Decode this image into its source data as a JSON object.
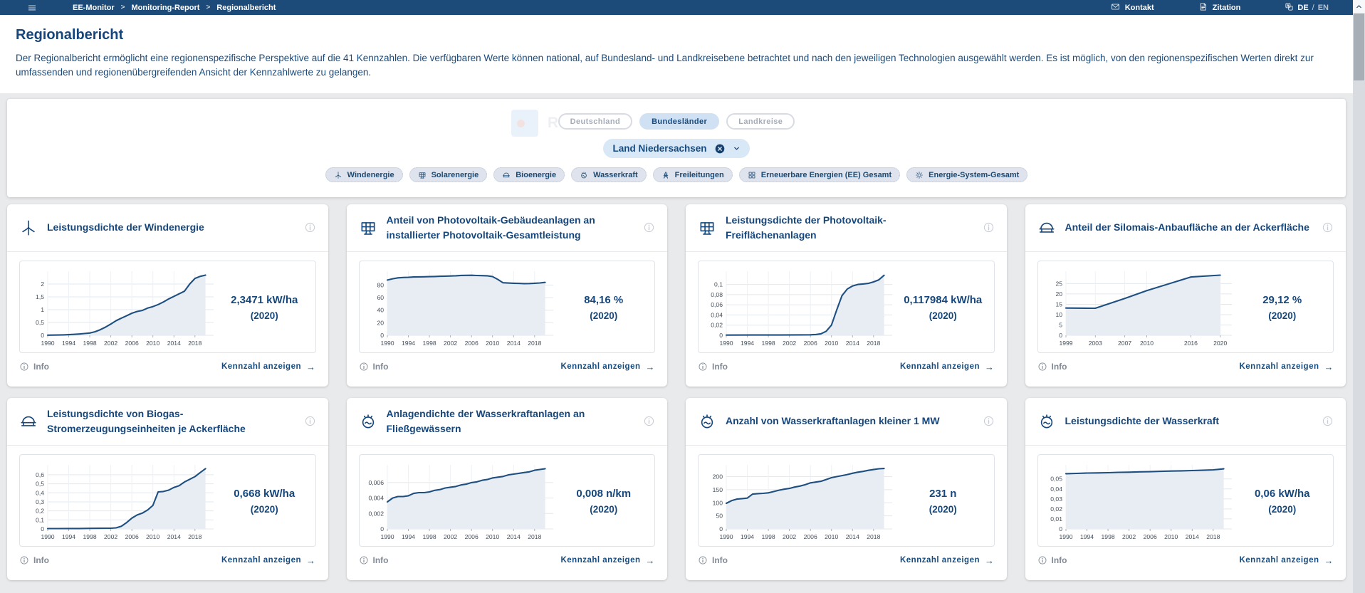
{
  "topbar": {
    "menu_icon": "hamburger-icon",
    "breadcrumb": [
      "EE-Monitor",
      "Monitoring-Report",
      "Regionalbericht"
    ],
    "separator": ">",
    "contact_label": "Kontakt",
    "citation_label": "Zitation",
    "lang_active": "DE",
    "lang_divider": "/",
    "lang_other": "EN"
  },
  "header": {
    "title": "Regionalbericht",
    "description": "Der Regionalbericht ermöglicht eine regionenspezifische Perspektive auf die 41 Kennzahlen. Die verfügbaren Werte können national, auf Bundesland- und Landkreisebene betrachtet und nach den jeweiligen Technologien ausgewählt werden. Es ist möglich, von den regionenspezifischen Werten direkt zur umfassenden und regionenübergreifenden Ansicht der Kennzahlwerte zu gelangen."
  },
  "filters": {
    "ghost_text": "Recht",
    "levels": [
      {
        "label": "Deutschland",
        "selected": false
      },
      {
        "label": "Bundesländer",
        "selected": true
      },
      {
        "label": "Landkreise",
        "selected": false
      }
    ],
    "region_select": {
      "value": "Land Niedersachsen",
      "clear_icon": "clear-circle-icon",
      "caret_icon": "chevron-down-icon"
    },
    "technologies": [
      {
        "label": "Windenergie",
        "icon": "wind-turbine-icon"
      },
      {
        "label": "Solarenergie",
        "icon": "solar-panel-icon"
      },
      {
        "label": "Bioenergie",
        "icon": "biogas-dome-icon"
      },
      {
        "label": "Wasserkraft",
        "icon": "water-power-icon"
      },
      {
        "label": "Freileitungen",
        "icon": "power-tower-icon"
      },
      {
        "label": "Erneuerbare Energien (EE) Gesamt",
        "icon": "ee-total-icon"
      },
      {
        "label": "Energie-System-Gesamt",
        "icon": "energy-system-icon"
      }
    ]
  },
  "ui": {
    "info_label": "Info",
    "action_label": "Kennzahl anzeigen",
    "action_arrow": "→"
  },
  "cards": [
    {
      "title": "Leistungsdichte der Windenergie",
      "icon": "wind-turbine-icon",
      "value": "2,3471 kW/ha",
      "year": "(2020)"
    },
    {
      "title": "Anteil von Photovoltaik-Gebäudeanlagen an installierter Photovoltaik-Gesamtleistung",
      "icon": "solar-panel-icon",
      "value": "84,16 %",
      "year": "(2020)"
    },
    {
      "title": "Leistungsdichte der Photovoltaik-Freiflächenanlagen",
      "icon": "solar-panel-icon",
      "value": "0,117984 kW/ha",
      "year": "(2020)"
    },
    {
      "title": "Anteil der Silomais-Anbaufläche an der Ackerfläche",
      "icon": "biogas-dome-icon",
      "value": "29,12 %",
      "year": "(2020)"
    },
    {
      "title": "Leistungsdichte von Biogas-Stromerzeugungseinheiten je Ackerfläche",
      "icon": "biogas-dome-icon",
      "value": "0,668 kW/ha",
      "year": "(2020)"
    },
    {
      "title": "Anlagendichte der Wasserkraftanlagen an Fließgewässern",
      "icon": "water-power-icon",
      "value": "0,008 n/km",
      "year": "(2020)"
    },
    {
      "title": "Anzahl von Wasserkraftanlagen kleiner 1 MW",
      "icon": "water-power-icon",
      "value": "231 n",
      "year": "(2020)"
    },
    {
      "title": "Leistungsdichte der Wasserkraft",
      "icon": "water-power-icon",
      "value": "0,06 kW/ha",
      "year": "(2020)"
    }
  ],
  "chart_data": [
    {
      "type": "area",
      "title": "Leistungsdichte der Windenergie",
      "ylabel": "kW/ha",
      "xlim": [
        1990,
        2020.6
      ],
      "ylim": [
        0,
        2.5
      ],
      "yticks": [
        0,
        0.5,
        1,
        1.5,
        2
      ],
      "xticks": [
        1990,
        1994,
        1998,
        2002,
        2006,
        2010,
        2014,
        2018
      ],
      "points": [
        [
          1990,
          0.005
        ],
        [
          1991,
          0.008
        ],
        [
          1992,
          0.012
        ],
        [
          1993,
          0.018
        ],
        [
          1994,
          0.025
        ],
        [
          1995,
          0.035
        ],
        [
          1996,
          0.05
        ],
        [
          1997,
          0.07
        ],
        [
          1998,
          0.09
        ],
        [
          1999,
          0.14
        ],
        [
          2000,
          0.22
        ],
        [
          2001,
          0.32
        ],
        [
          2002,
          0.44
        ],
        [
          2003,
          0.57
        ],
        [
          2004,
          0.67
        ],
        [
          2005,
          0.76
        ],
        [
          2006,
          0.86
        ],
        [
          2007,
          0.93
        ],
        [
          2008,
          0.97
        ],
        [
          2009,
          1.06
        ],
        [
          2010,
          1.12
        ],
        [
          2011,
          1.2
        ],
        [
          2012,
          1.3
        ],
        [
          2013,
          1.42
        ],
        [
          2014,
          1.52
        ],
        [
          2015,
          1.62
        ],
        [
          2016,
          1.72
        ],
        [
          2017,
          2.0
        ],
        [
          2018,
          2.22
        ],
        [
          2019,
          2.3
        ],
        [
          2020,
          2.3471
        ]
      ]
    },
    {
      "type": "area",
      "title": "Anteil von Photovoltaik-Gebäudeanlagen an installierter Photovoltaik-Gesamtleistung",
      "ylabel": "%",
      "xlim": [
        1990,
        2020.6
      ],
      "ylim": [
        0,
        102
      ],
      "yticks": [
        0,
        20,
        40,
        60,
        80
      ],
      "xticks": [
        1990,
        1994,
        1998,
        2002,
        2006,
        2010,
        2014,
        2018
      ],
      "points": [
        [
          1990,
          88
        ],
        [
          1991,
          90
        ],
        [
          1992,
          91.5
        ],
        [
          1993,
          92
        ],
        [
          1994,
          92.3
        ],
        [
          1995,
          92.8
        ],
        [
          1996,
          93
        ],
        [
          1997,
          93.2
        ],
        [
          1998,
          93.4
        ],
        [
          1999,
          93.6
        ],
        [
          2000,
          93.9
        ],
        [
          2001,
          94.2
        ],
        [
          2002,
          94.4
        ],
        [
          2003,
          94.8
        ],
        [
          2004,
          95.3
        ],
        [
          2005,
          95.4
        ],
        [
          2006,
          95.5
        ],
        [
          2007,
          95.2
        ],
        [
          2008,
          95
        ],
        [
          2009,
          94.8
        ],
        [
          2010,
          93.5
        ],
        [
          2011,
          89
        ],
        [
          2012,
          83.6
        ],
        [
          2013,
          83.2
        ],
        [
          2014,
          82.8
        ],
        [
          2015,
          82.6
        ],
        [
          2016,
          82.3
        ],
        [
          2017,
          82.4
        ],
        [
          2018,
          82.8
        ],
        [
          2019,
          83.3
        ],
        [
          2020,
          84.16
        ]
      ]
    },
    {
      "type": "area",
      "title": "Leistungsdichte der Photovoltaik-Freiflächenanlagen",
      "ylabel": "kW/ha",
      "xlim": [
        1990,
        2020.6
      ],
      "ylim": [
        0,
        0.126
      ],
      "yticks": [
        0,
        0.02,
        0.04,
        0.06,
        0.08,
        0.1
      ],
      "xticks": [
        1990,
        1994,
        1998,
        2002,
        2006,
        2010,
        2014,
        2018
      ],
      "points": [
        [
          1990,
          0.0004
        ],
        [
          1995,
          0.0005
        ],
        [
          2000,
          0.0006
        ],
        [
          2004,
          0.0008
        ],
        [
          2006,
          0.001
        ],
        [
          2007,
          0.0015
        ],
        [
          2008,
          0.003
        ],
        [
          2009,
          0.008
        ],
        [
          2010,
          0.02
        ],
        [
          2011,
          0.05
        ],
        [
          2012,
          0.078
        ],
        [
          2013,
          0.091
        ],
        [
          2014,
          0.097
        ],
        [
          2015,
          0.1
        ],
        [
          2016,
          0.101
        ],
        [
          2017,
          0.102
        ],
        [
          2018,
          0.105
        ],
        [
          2019,
          0.109
        ],
        [
          2020,
          0.117984
        ]
      ]
    },
    {
      "type": "area",
      "title": "Anteil der Silomais-Anbaufläche an der Ackerfläche",
      "ylabel": "%",
      "xlim": [
        1999,
        2020.9
      ],
      "ylim": [
        0,
        31
      ],
      "yticks": [
        0,
        5,
        10,
        15,
        20,
        25
      ],
      "xticks": [
        1999,
        2003,
        2007,
        2010,
        2016,
        2020
      ],
      "points": [
        [
          1999,
          13.2
        ],
        [
          2003,
          13.1
        ],
        [
          2007,
          17.8
        ],
        [
          2010,
          21.6
        ],
        [
          2016,
          28.2
        ],
        [
          2020,
          29.12
        ]
      ]
    },
    {
      "type": "area",
      "title": "Leistungsdichte von Biogas-Stromerzeugungseinheiten je Ackerfläche",
      "ylabel": "kW/ha",
      "xlim": [
        1990,
        2020.6
      ],
      "ylim": [
        0,
        0.71
      ],
      "yticks": [
        0,
        0.1,
        0.2,
        0.3,
        0.4,
        0.5,
        0.6
      ],
      "xticks": [
        1990,
        1994,
        1998,
        2002,
        2006,
        2010,
        2014,
        2018
      ],
      "points": [
        [
          1990,
          0.004
        ],
        [
          1992,
          0.004
        ],
        [
          1994,
          0.005
        ],
        [
          1996,
          0.005
        ],
        [
          1998,
          0.006
        ],
        [
          2000,
          0.007
        ],
        [
          2002,
          0.008
        ],
        [
          2003,
          0.012
        ],
        [
          2004,
          0.03
        ],
        [
          2005,
          0.07
        ],
        [
          2006,
          0.12
        ],
        [
          2007,
          0.155
        ],
        [
          2008,
          0.175
        ],
        [
          2009,
          0.21
        ],
        [
          2010,
          0.26
        ],
        [
          2011,
          0.41
        ],
        [
          2012,
          0.415
        ],
        [
          2013,
          0.43
        ],
        [
          2014,
          0.46
        ],
        [
          2015,
          0.48
        ],
        [
          2016,
          0.52
        ],
        [
          2017,
          0.55
        ],
        [
          2018,
          0.58
        ],
        [
          2019,
          0.625
        ],
        [
          2020,
          0.668
        ]
      ]
    },
    {
      "type": "area",
      "title": "Anlagendichte der Wasserkraftanlagen an Fließgewässern",
      "ylabel": "n/km",
      "xlim": [
        1990,
        2020.6
      ],
      "ylim": [
        0,
        0.0083
      ],
      "yticks": [
        0,
        0.002,
        0.004,
        0.006
      ],
      "xticks": [
        1990,
        1994,
        1998,
        2002,
        2006,
        2010,
        2014,
        2018
      ],
      "points": [
        [
          1990,
          0.0035
        ],
        [
          1991,
          0.004
        ],
        [
          1992,
          0.0042
        ],
        [
          1993,
          0.0042
        ],
        [
          1994,
          0.0043
        ],
        [
          1995,
          0.0046
        ],
        [
          1996,
          0.0047
        ],
        [
          1997,
          0.0047
        ],
        [
          1998,
          0.0048
        ],
        [
          1999,
          0.005
        ],
        [
          2000,
          0.0051
        ],
        [
          2001,
          0.0053
        ],
        [
          2002,
          0.0054
        ],
        [
          2003,
          0.0055
        ],
        [
          2004,
          0.0057
        ],
        [
          2005,
          0.0058
        ],
        [
          2006,
          0.006
        ],
        [
          2007,
          0.0061
        ],
        [
          2008,
          0.0063
        ],
        [
          2009,
          0.0064
        ],
        [
          2010,
          0.0066
        ],
        [
          2011,
          0.0067
        ],
        [
          2012,
          0.0068
        ],
        [
          2013,
          0.007
        ],
        [
          2014,
          0.0071
        ],
        [
          2015,
          0.0072
        ],
        [
          2016,
          0.0073
        ],
        [
          2017,
          0.0074
        ],
        [
          2018,
          0.0076
        ],
        [
          2019,
          0.0077
        ],
        [
          2020,
          0.0078
        ]
      ]
    },
    {
      "type": "area",
      "title": "Anzahl von Wasserkraftanlagen kleiner 1 MW",
      "ylabel": "n",
      "xlim": [
        1990,
        2020.6
      ],
      "ylim": [
        0,
        245
      ],
      "yticks": [
        0,
        50,
        100,
        150,
        200
      ],
      "xticks": [
        1990,
        1994,
        1998,
        2002,
        2006,
        2010,
        2014,
        2018
      ],
      "points": [
        [
          1990,
          98
        ],
        [
          1991,
          108
        ],
        [
          1992,
          114
        ],
        [
          1993,
          116
        ],
        [
          1994,
          118
        ],
        [
          1995,
          133
        ],
        [
          1996,
          135
        ],
        [
          1997,
          136
        ],
        [
          1998,
          138
        ],
        [
          1999,
          143
        ],
        [
          2000,
          148
        ],
        [
          2001,
          152
        ],
        [
          2002,
          155
        ],
        [
          2003,
          160
        ],
        [
          2004,
          164
        ],
        [
          2005,
          169
        ],
        [
          2006,
          176
        ],
        [
          2007,
          179
        ],
        [
          2008,
          182
        ],
        [
          2009,
          189
        ],
        [
          2010,
          196
        ],
        [
          2011,
          200
        ],
        [
          2012,
          204
        ],
        [
          2013,
          208
        ],
        [
          2014,
          213
        ],
        [
          2015,
          217
        ],
        [
          2016,
          220
        ],
        [
          2017,
          224
        ],
        [
          2018,
          227
        ],
        [
          2019,
          230
        ],
        [
          2020,
          231
        ]
      ]
    },
    {
      "type": "area",
      "title": "Leistungsdichte der Wasserkraft",
      "ylabel": "kW/ha",
      "xlim": [
        1990,
        2020.6
      ],
      "ylim": [
        0,
        0.064
      ],
      "yticks": [
        0,
        0.01,
        0.02,
        0.03,
        0.04,
        0.05
      ],
      "xticks": [
        1990,
        1994,
        1998,
        2002,
        2006,
        2010,
        2014,
        2018
      ],
      "points": [
        [
          1990,
          0.0552
        ],
        [
          1992,
          0.0555
        ],
        [
          1994,
          0.0558
        ],
        [
          1996,
          0.056
        ],
        [
          1998,
          0.0562
        ],
        [
          2000,
          0.0565
        ],
        [
          2002,
          0.0567
        ],
        [
          2004,
          0.057
        ],
        [
          2006,
          0.0572
        ],
        [
          2008,
          0.0575
        ],
        [
          2010,
          0.0578
        ],
        [
          2012,
          0.058
        ],
        [
          2014,
          0.0583
        ],
        [
          2016,
          0.0586
        ],
        [
          2018,
          0.059
        ],
        [
          2019,
          0.0595
        ],
        [
          2020,
          0.06
        ]
      ]
    }
  ],
  "colors": {
    "topbar_bg": "#1d4b79",
    "accent": "#16477c",
    "chart_line": "#1e4f80",
    "chart_fill": "#e8edf3",
    "chip_bg": "#dee3ed",
    "toggle_selected_bg": "#cfe1f2",
    "dropdown_bg": "#d9e8f6",
    "page_bg": "#e9eaec"
  }
}
